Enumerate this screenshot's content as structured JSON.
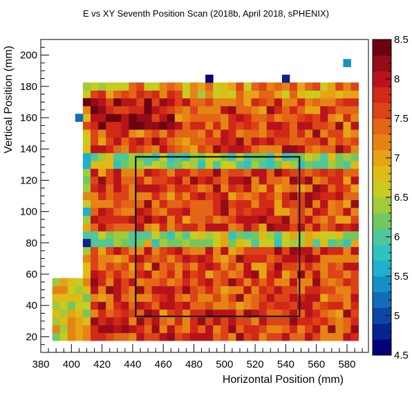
{
  "chart_data": {
    "type": "heatmap",
    "title": "E vs XY Seventh Position Scan (2018b, April 2018, sPHENIX)",
    "xlabel": "Horizontal Position (mm)",
    "ylabel": "Vertical Position (mm)",
    "xlim": [
      380,
      594
    ],
    "ylim": [
      10,
      210
    ],
    "x_ticks": [
      380,
      400,
      420,
      440,
      460,
      480,
      500,
      520,
      540,
      560,
      580
    ],
    "y_ticks": [
      20,
      40,
      60,
      80,
      100,
      120,
      140,
      160,
      180,
      200
    ],
    "colorbar": {
      "min": 4.5,
      "max": 8.5,
      "ticks": [
        4.5,
        5,
        5.5,
        6,
        6.5,
        7,
        7.5,
        8,
        8.5
      ],
      "palette": [
        "#00007a",
        "#06248f",
        "#0d47a5",
        "#126cb8",
        "#168fc7",
        "#1db0cf",
        "#31c2bf",
        "#4ec79b",
        "#72c760",
        "#a0cb3a",
        "#c8cc20",
        "#dfbb15",
        "#e6a314",
        "#e58415",
        "#e36516",
        "#dc4317",
        "#d22818",
        "#b8131b",
        "#930c17",
        "#6b0410"
      ]
    },
    "grid": false,
    "bin_width": {
      "x": 5,
      "y": 5
    },
    "x_bins_start": 387.5,
    "y_bins_start": 17.5,
    "occupied_region": {
      "main_block": {
        "x": [
          407.5,
          587.5
        ],
        "y": [
          17.5,
          182.5
        ]
      },
      "lower_left_block": {
        "x": [
          387.5,
          407.5
        ],
        "y": [
          17.5,
          57.5
        ]
      },
      "notes": "Low-value stripes near y=135 and y=80; a few isolated low bins above y=182"
    },
    "rectangle": {
      "x": [
        442,
        549
      ],
      "y": [
        33,
        135
      ]
    },
    "sample_bins": [
      {
        "x": 410,
        "y": 80,
        "value": 4.8
      },
      {
        "x": 410,
        "y": 100,
        "value": 5.6
      },
      {
        "x": 410,
        "y": 130,
        "value": 5.5
      },
      {
        "x": 405,
        "y": 160,
        "value": 5.2
      },
      {
        "x": 580,
        "y": 195,
        "value": 5.4
      },
      {
        "x": 490,
        "y": 185,
        "value": 4.6
      },
      {
        "x": 540,
        "y": 185,
        "value": 4.8
      },
      {
        "x": 450,
        "y": 132,
        "value": 6.0
      },
      {
        "x": 460,
        "y": 80,
        "value": 6.3
      },
      {
        "x": 500,
        "y": 100,
        "value": 8.1
      },
      {
        "x": 440,
        "y": 160,
        "value": 8.3
      },
      {
        "x": 410,
        "y": 170,
        "value": 8.4
      },
      {
        "x": 480,
        "y": 25,
        "value": 7.8
      },
      {
        "x": 395,
        "y": 45,
        "value": 6.8
      }
    ]
  }
}
